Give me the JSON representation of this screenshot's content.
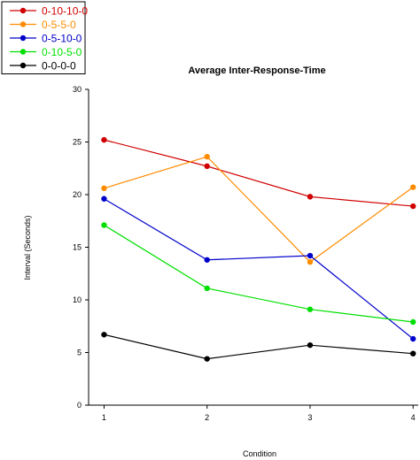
{
  "chart_data": {
    "type": "line",
    "title": "Average Inter-Response-Time",
    "xlabel": "Condition",
    "ylabel": "Interval (Seconds)",
    "x": [
      1,
      2,
      3,
      4
    ],
    "x_ticks": [
      "1",
      "2",
      "3",
      "4"
    ],
    "ylim": [
      0,
      30
    ],
    "y_ticks": [
      "0",
      "5",
      "10",
      "15",
      "20",
      "25",
      "30"
    ],
    "grid": false,
    "legend_position": "top-left",
    "series": [
      {
        "name": "0-10-10-0",
        "color": "#d00000",
        "values": [
          25.2,
          22.7,
          19.8,
          18.9
        ]
      },
      {
        "name": "0-5-5-0",
        "color": "#ff8c00",
        "values": [
          20.6,
          23.6,
          13.6,
          20.7
        ]
      },
      {
        "name": "0-5-10-0",
        "color": "#0000cc",
        "values": [
          19.6,
          13.8,
          14.2,
          6.3
        ]
      },
      {
        "name": "0-10-5-0",
        "color": "#00e000",
        "values": [
          17.1,
          11.1,
          9.1,
          7.9
        ]
      },
      {
        "name": "0-0-0-0",
        "color": "#000000",
        "values": [
          6.7,
          4.4,
          5.7,
          4.9
        ]
      }
    ]
  }
}
